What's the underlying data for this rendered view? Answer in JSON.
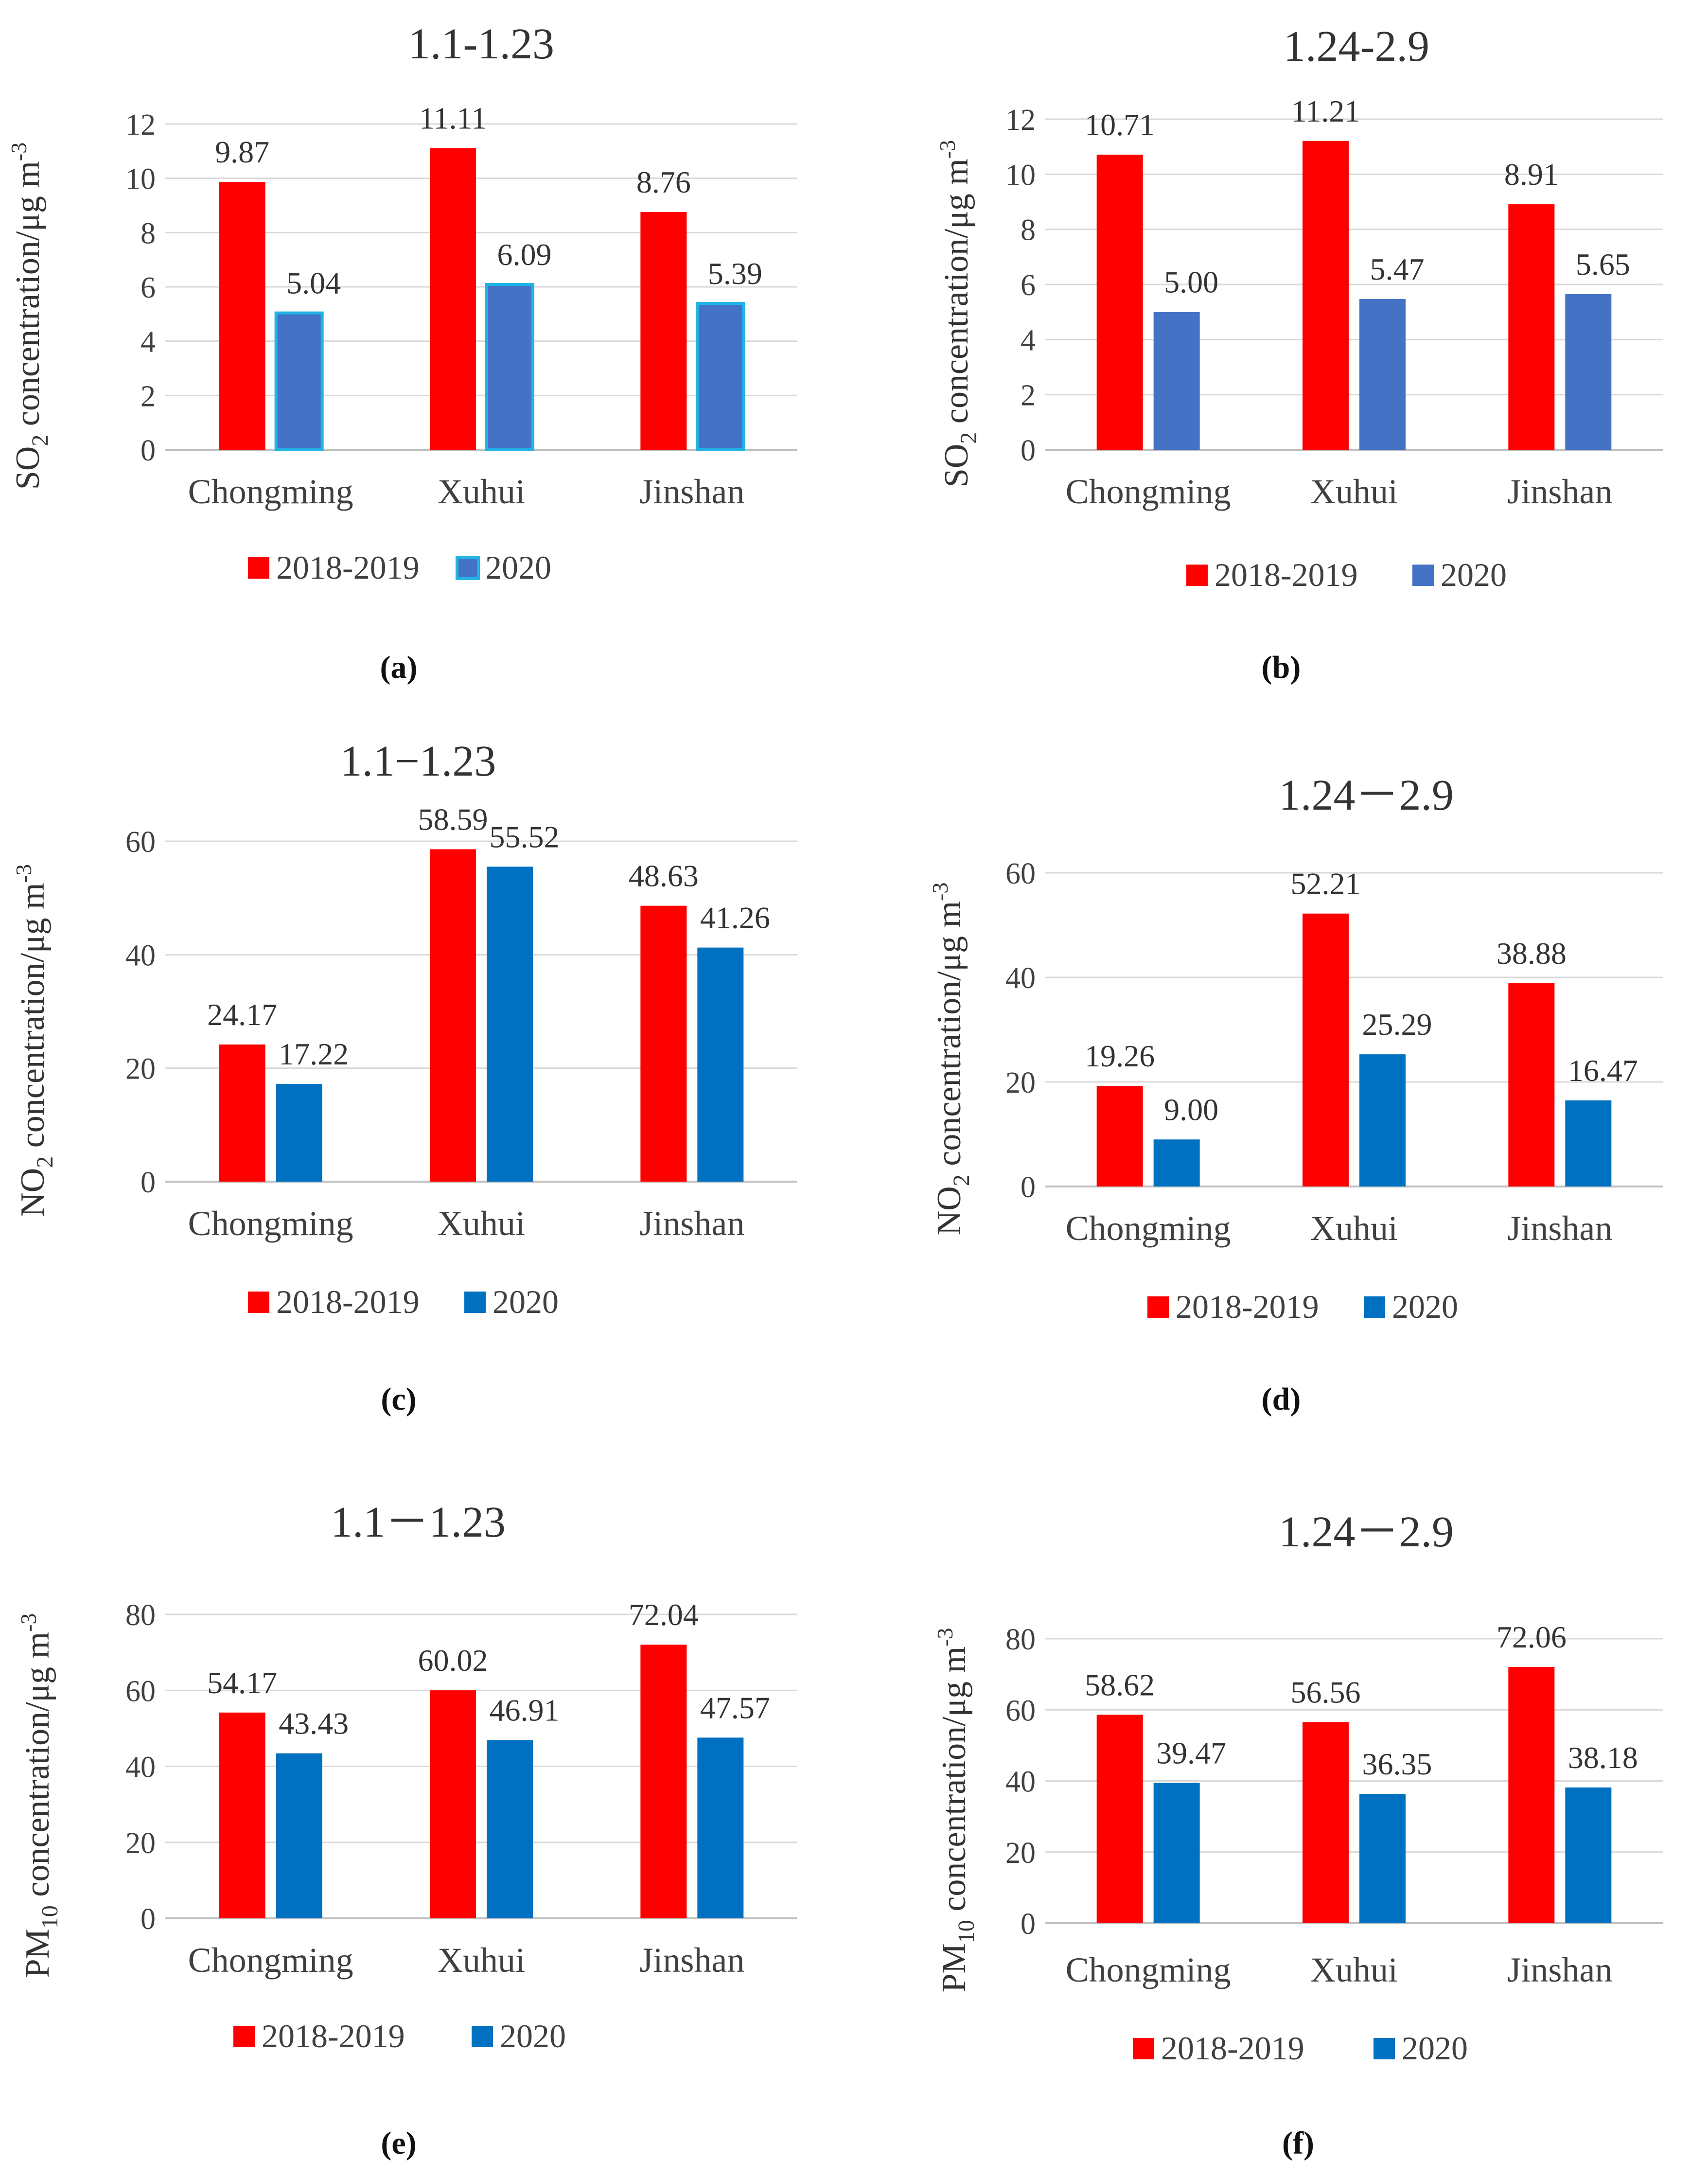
{
  "chart_data": [
    {
      "type": "bar",
      "panel": "a",
      "title": "1.1-1.23",
      "ylabel_main": "SO",
      "ylabel_sub": "2",
      "ylabel_rest": " concentration/μg m",
      "ylabel_sup": "-3",
      "categories": [
        "Chongming",
        "Xuhui",
        "Jinshan"
      ],
      "ylim": [
        0,
        12
      ],
      "yticks": [
        0,
        2,
        4,
        6,
        8,
        10,
        12
      ],
      "grid": true,
      "series": [
        {
          "name": "2018-2019",
          "color": "#ff0000",
          "values": [
            9.87,
            11.11,
            8.76
          ],
          "labels": [
            "9.87",
            "11.11",
            "8.76"
          ]
        },
        {
          "name": "2020",
          "color": "#4472c4",
          "stroke": "#1fb4e6",
          "values": [
            5.04,
            6.09,
            5.39
          ],
          "labels": [
            "5.04",
            "6.09",
            "5.39"
          ]
        }
      ],
      "legend": "bottom"
    },
    {
      "type": "bar",
      "panel": "b",
      "title": "1.24-2.9",
      "ylabel_main": "SO",
      "ylabel_sub": "2",
      "ylabel_rest": " concentration/μg m",
      "ylabel_sup": "-3",
      "categories": [
        "Chongming",
        "Xuhui",
        "Jinshan"
      ],
      "ylim": [
        0,
        12
      ],
      "yticks": [
        0,
        2,
        4,
        6,
        8,
        10,
        12
      ],
      "grid": true,
      "series": [
        {
          "name": "2018-2019",
          "color": "#ff0000",
          "values": [
            10.71,
            11.21,
            8.91
          ],
          "labels": [
            "10.71",
            "11.21",
            "8.91"
          ]
        },
        {
          "name": "2020",
          "color": "#4472c4",
          "values": [
            5.0,
            5.47,
            5.65
          ],
          "labels": [
            "5.00",
            "5.47",
            "5.65"
          ]
        }
      ],
      "legend": "bottom"
    },
    {
      "type": "bar",
      "panel": "c",
      "title": "1.1−1.23",
      "ylabel_main": "NO",
      "ylabel_sub": "2",
      "ylabel_rest": " concentration/μg m",
      "ylabel_sup": "-3",
      "categories": [
        "Chongming",
        "Xuhui",
        "Jinshan"
      ],
      "ylim": [
        0,
        60
      ],
      "yticks": [
        0,
        20,
        40,
        60
      ],
      "grid": true,
      "series": [
        {
          "name": "2018-2019",
          "color": "#ff0000",
          "values": [
            24.17,
            58.59,
            48.63
          ],
          "labels": [
            "24.17",
            "58.59",
            "48.63"
          ]
        },
        {
          "name": "2020",
          "color": "#0070c0",
          "values": [
            17.22,
            55.52,
            41.26
          ],
          "labels": [
            "17.22",
            "55.52",
            "41.26"
          ]
        }
      ],
      "legend": "bottom"
    },
    {
      "type": "bar",
      "panel": "d",
      "title": "1.24－2.9",
      "ylabel_main": "NO",
      "ylabel_sub": "2",
      "ylabel_rest": " concentration/μg m",
      "ylabel_sup": "-3",
      "categories": [
        "Chongming",
        "Xuhui",
        "Jinshan"
      ],
      "ylim": [
        0,
        60
      ],
      "yticks": [
        0,
        20,
        40,
        60
      ],
      "grid": true,
      "series": [
        {
          "name": "2018-2019",
          "color": "#ff0000",
          "values": [
            19.26,
            52.21,
            38.88
          ],
          "labels": [
            "19.26",
            "52.21",
            "38.88"
          ]
        },
        {
          "name": "2020",
          "color": "#0070c0",
          "values": [
            9.0,
            25.29,
            16.47
          ],
          "labels": [
            "9.00",
            "25.29",
            "16.47"
          ]
        }
      ],
      "legend": "bottom"
    },
    {
      "type": "bar",
      "panel": "e",
      "title": "1.1－1.23",
      "ylabel_main": "PM",
      "ylabel_sub": "10",
      "ylabel_rest": " concentration/μg m",
      "ylabel_sup": "-3",
      "categories": [
        "Chongming",
        "Xuhui",
        "Jinshan"
      ],
      "ylim": [
        0,
        80
      ],
      "yticks": [
        0,
        20,
        40,
        60,
        80
      ],
      "grid": true,
      "series": [
        {
          "name": "2018-2019",
          "color": "#ff0000",
          "values": [
            54.17,
            60.02,
            72.04
          ],
          "labels": [
            "54.17",
            "60.02",
            "72.04"
          ]
        },
        {
          "name": "2020",
          "color": "#0070c0",
          "values": [
            43.43,
            46.91,
            47.57
          ],
          "labels": [
            "43.43",
            "46.91",
            "47.57"
          ]
        }
      ],
      "legend": "bottom"
    },
    {
      "type": "bar",
      "panel": "f",
      "title": "1.24－2.9",
      "ylabel_main": "PM",
      "ylabel_sub": "10",
      "ylabel_rest": " concentration/μg m",
      "ylabel_sup": "-3",
      "categories": [
        "Chongming",
        "Xuhui",
        "Jinshan"
      ],
      "ylim": [
        0,
        80
      ],
      "yticks": [
        0,
        20,
        40,
        60,
        80
      ],
      "grid": true,
      "series": [
        {
          "name": "2018-2019",
          "color": "#ff0000",
          "values": [
            58.62,
            56.56,
            72.06
          ],
          "labels": [
            "58.62",
            "56.56",
            "72.06"
          ]
        },
        {
          "name": "2020",
          "color": "#0070c0",
          "values": [
            39.47,
            36.35,
            38.18
          ],
          "labels": [
            "39.47",
            "36.35",
            "38.18"
          ]
        }
      ],
      "legend": "bottom"
    }
  ],
  "captions": [
    "(a)",
    "(b)",
    "(c)",
    "(d)",
    "(e)",
    "(f)"
  ]
}
